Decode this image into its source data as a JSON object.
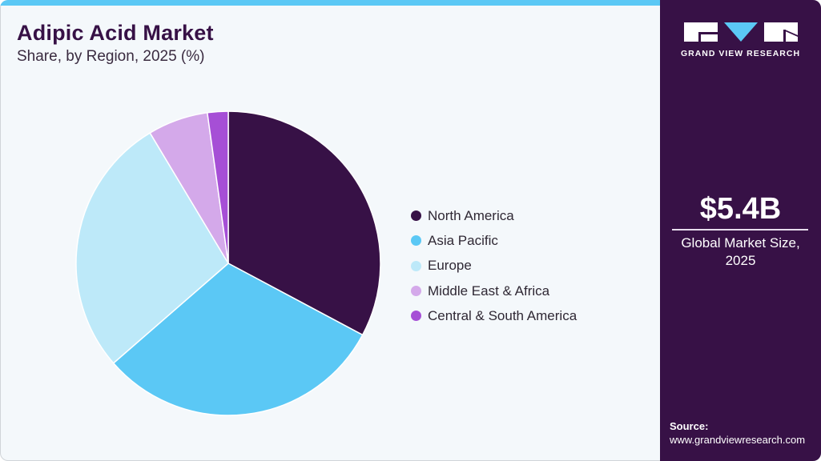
{
  "header": {
    "title": "Adipic Acid Market",
    "subtitle": "Share, by Region, 2025 (%)"
  },
  "brand": {
    "name": "GRAND VIEW RESEARCH",
    "accent": "#5bc8f5",
    "panel_color": "#371146"
  },
  "highlight": {
    "value": "$5.4B",
    "label_line1": "Global Market Size,",
    "label_line2": "2025"
  },
  "source": {
    "heading": "Source:",
    "url": "www.grandviewresearch.com"
  },
  "legend": [
    {
      "label": "North America",
      "color": "#371146"
    },
    {
      "label": "Asia Pacific",
      "color": "#5bc8f5"
    },
    {
      "label": "Europe",
      "color": "#bde9f9"
    },
    {
      "label": "Middle East & Africa",
      "color": "#d4a9ea"
    },
    {
      "label": "Central & South America",
      "color": "#a64fd6"
    }
  ],
  "chart_data": {
    "type": "pie",
    "title": "Adipic Acid Market",
    "subtitle": "Share, by Region, 2025 (%)",
    "categories": [
      "North America",
      "Asia Pacific",
      "Europe",
      "Middle East & Africa",
      "Central & South America"
    ],
    "values": [
      32.8,
      30.8,
      27.8,
      6.4,
      2.2
    ],
    "colors": [
      "#371146",
      "#5bc8f5",
      "#bde9f9",
      "#d4a9ea",
      "#a64fd6"
    ],
    "start_angle_deg": 0,
    "direction": "clockwise",
    "legend_position": "right",
    "unit": "%"
  }
}
